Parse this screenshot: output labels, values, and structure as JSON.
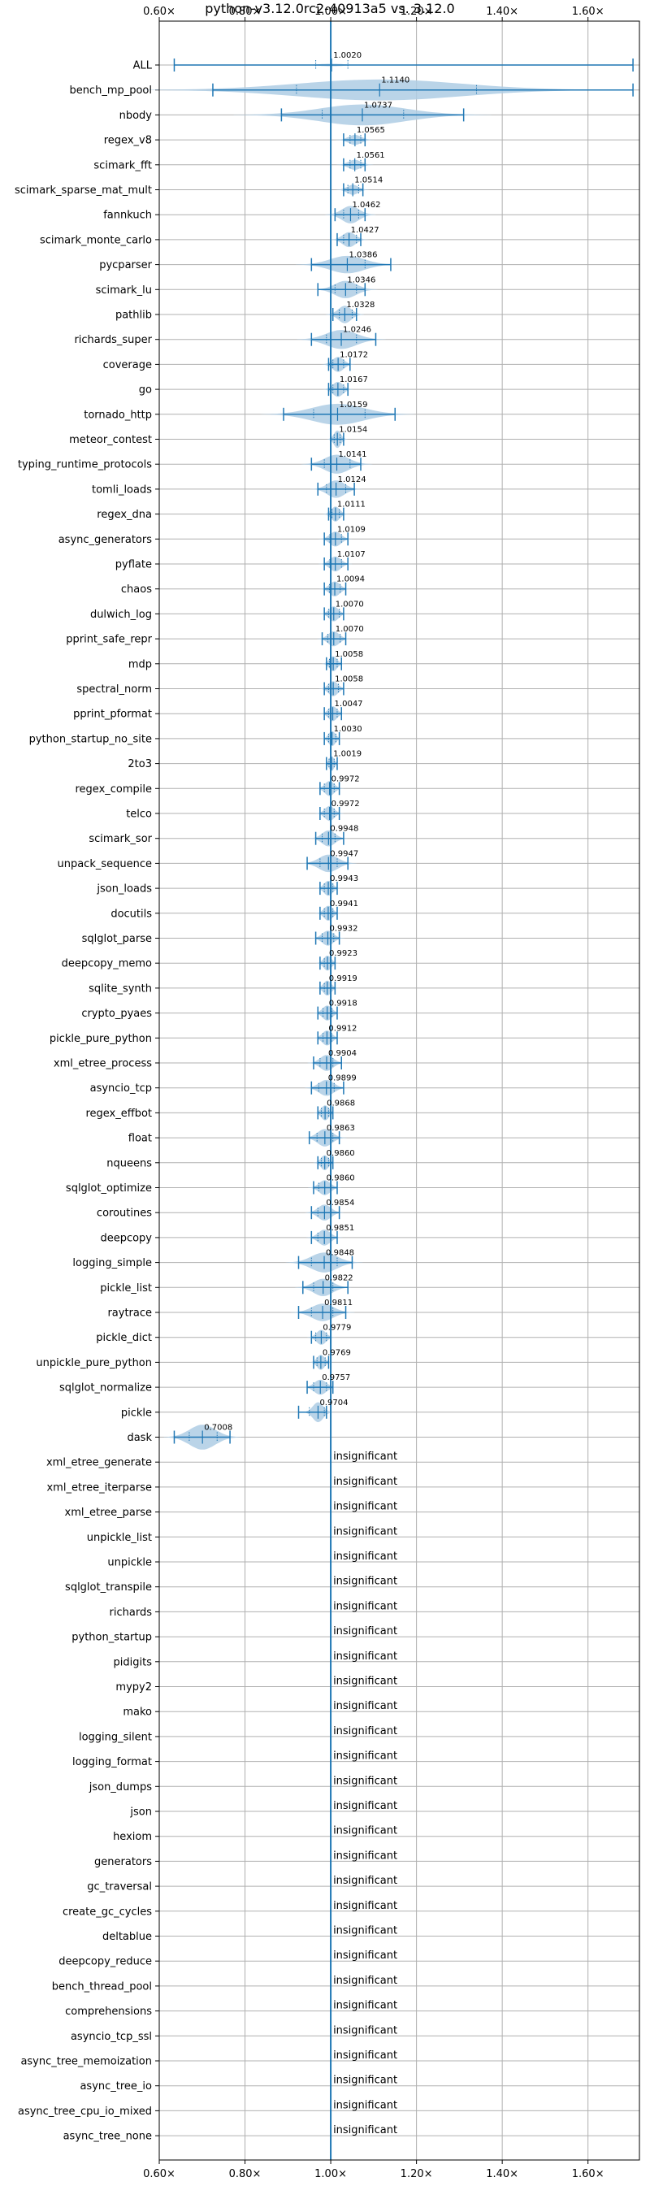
{
  "chart_data": {
    "type": "violin",
    "title": "python-v3.12.0rc2-40913a5 vs. 3.12.0",
    "xlabel": "",
    "ylabel": "",
    "xlim": [
      0.6,
      1.72
    ],
    "xticks": [
      0.6,
      0.8,
      1.0,
      1.2,
      1.4,
      1.6
    ],
    "xtick_labels": [
      "0.60×",
      "0.80×",
      "1.00×",
      "1.20×",
      "1.40×",
      "1.60×"
    ],
    "grid": true,
    "reference_line": 1.0,
    "colors": {
      "violin": "#aecde4",
      "line": "#1f77b4"
    },
    "insignificant_label": "insignificant",
    "benchmarks": [
      {
        "name": "ALL",
        "mean": 1.002,
        "label": "1.0020",
        "min": 0.635,
        "max": 1.705,
        "q1": 0.965,
        "q3": 1.04,
        "width": 0.05,
        "spread": 0.03
      },
      {
        "name": "bench_mp_pool",
        "mean": 1.114,
        "label": "1.1140",
        "min": 0.725,
        "max": 1.705,
        "q1": 0.92,
        "q3": 1.34,
        "width": 0.42,
        "spread": 0.19
      },
      {
        "name": "nbody",
        "mean": 1.0737,
        "label": "1.0737",
        "min": 0.885,
        "max": 1.31,
        "q1": 0.98,
        "q3": 1.17,
        "width": 0.42,
        "spread": 0.1
      },
      {
        "name": "regex_v8",
        "mean": 1.0565,
        "label": "1.0565",
        "min": 1.03,
        "max": 1.08,
        "q1": 1.045,
        "q3": 1.07,
        "width": 0.2,
        "spread": 0.015
      },
      {
        "name": "scimark_fft",
        "mean": 1.0561,
        "label": "1.0561",
        "min": 1.03,
        "max": 1.08,
        "q1": 1.045,
        "q3": 1.07,
        "width": 0.2,
        "spread": 0.015
      },
      {
        "name": "scimark_sparse_mat_mult",
        "mean": 1.0514,
        "label": "1.0514",
        "min": 1.03,
        "max": 1.075,
        "q1": 1.04,
        "q3": 1.065,
        "width": 0.2,
        "spread": 0.013
      },
      {
        "name": "fannkuch",
        "mean": 1.0462,
        "label": "1.0462",
        "min": 1.01,
        "max": 1.08,
        "q1": 1.03,
        "q3": 1.065,
        "width": 0.35,
        "spread": 0.02
      },
      {
        "name": "scimark_monte_carlo",
        "mean": 1.0427,
        "label": "1.0427",
        "min": 1.015,
        "max": 1.07,
        "q1": 1.03,
        "q3": 1.06,
        "width": 0.3,
        "spread": 0.015
      },
      {
        "name": "pycparser",
        "mean": 1.0386,
        "label": "1.0386",
        "min": 0.955,
        "max": 1.14,
        "q1": 1.0,
        "q3": 1.08,
        "width": 0.35,
        "spread": 0.04
      },
      {
        "name": "scimark_lu",
        "mean": 1.0346,
        "label": "1.0346",
        "min": 0.97,
        "max": 1.08,
        "q1": 1.01,
        "q3": 1.06,
        "width": 0.35,
        "spread": 0.025
      },
      {
        "name": "pathlib",
        "mean": 1.0328,
        "label": "1.0328",
        "min": 1.005,
        "max": 1.06,
        "q1": 1.02,
        "q3": 1.05,
        "width": 0.35,
        "spread": 0.015
      },
      {
        "name": "richards_super",
        "mean": 1.0246,
        "label": "1.0246",
        "min": 0.955,
        "max": 1.105,
        "q1": 0.99,
        "q3": 1.06,
        "width": 0.38,
        "spread": 0.035
      },
      {
        "name": "coverage",
        "mean": 1.0172,
        "label": "1.0172",
        "min": 0.995,
        "max": 1.045,
        "q1": 1.005,
        "q3": 1.03,
        "width": 0.3,
        "spread": 0.013
      },
      {
        "name": "go",
        "mean": 1.0167,
        "label": "1.0167",
        "min": 0.995,
        "max": 1.04,
        "q1": 1.005,
        "q3": 1.03,
        "width": 0.3,
        "spread": 0.012
      },
      {
        "name": "tornado_http",
        "mean": 1.0159,
        "label": "1.0159",
        "min": 0.89,
        "max": 1.15,
        "q1": 0.96,
        "q3": 1.08,
        "width": 0.42,
        "spread": 0.06
      },
      {
        "name": "meteor_contest",
        "mean": 1.0154,
        "label": "1.0154",
        "min": 1.0,
        "max": 1.03,
        "q1": 1.008,
        "q3": 1.022,
        "width": 0.35,
        "spread": 0.008
      },
      {
        "name": "typing_runtime_protocols",
        "mean": 1.0141,
        "label": "1.0141",
        "min": 0.955,
        "max": 1.07,
        "q1": 0.985,
        "q3": 1.045,
        "width": 0.38,
        "spread": 0.028
      },
      {
        "name": "tomli_loads",
        "mean": 1.0124,
        "label": "1.0124",
        "min": 0.97,
        "max": 1.055,
        "q1": 0.99,
        "q3": 1.035,
        "width": 0.35,
        "spread": 0.02
      },
      {
        "name": "regex_dna",
        "mean": 1.0111,
        "label": "1.0111",
        "min": 0.995,
        "max": 1.03,
        "q1": 1.003,
        "q3": 1.02,
        "width": 0.3,
        "spread": 0.01
      },
      {
        "name": "async_generators",
        "mean": 1.0109,
        "label": "1.0109",
        "min": 0.985,
        "max": 1.04,
        "q1": 0.998,
        "q3": 1.025,
        "width": 0.3,
        "spread": 0.013
      },
      {
        "name": "pyflate",
        "mean": 1.0107,
        "label": "1.0107",
        "min": 0.985,
        "max": 1.04,
        "q1": 0.998,
        "q3": 1.025,
        "width": 0.3,
        "spread": 0.013
      },
      {
        "name": "chaos",
        "mean": 1.0094,
        "label": "1.0094",
        "min": 0.985,
        "max": 1.035,
        "q1": 0.997,
        "q3": 1.022,
        "width": 0.3,
        "spread": 0.012
      },
      {
        "name": "dulwich_log",
        "mean": 1.007,
        "label": "1.0070",
        "min": 0.985,
        "max": 1.03,
        "q1": 0.995,
        "q3": 1.02,
        "width": 0.3,
        "spread": 0.011
      },
      {
        "name": "pprint_safe_repr",
        "mean": 1.007,
        "label": "1.0070",
        "min": 0.98,
        "max": 1.035,
        "q1": 0.993,
        "q3": 1.022,
        "width": 0.3,
        "spread": 0.013
      },
      {
        "name": "mdp",
        "mean": 1.0058,
        "label": "1.0058",
        "min": 0.99,
        "max": 1.025,
        "q1": 0.997,
        "q3": 1.015,
        "width": 0.3,
        "spread": 0.009
      },
      {
        "name": "spectral_norm",
        "mean": 1.0058,
        "label": "1.0058",
        "min": 0.985,
        "max": 1.03,
        "q1": 0.995,
        "q3": 1.018,
        "width": 0.3,
        "spread": 0.011
      },
      {
        "name": "pprint_pformat",
        "mean": 1.0047,
        "label": "1.0047",
        "min": 0.985,
        "max": 1.025,
        "q1": 0.995,
        "q3": 1.015,
        "width": 0.3,
        "spread": 0.01
      },
      {
        "name": "python_startup_no_site",
        "mean": 1.003,
        "label": "1.0030",
        "min": 0.985,
        "max": 1.02,
        "q1": 0.995,
        "q3": 1.012,
        "width": 0.3,
        "spread": 0.008
      },
      {
        "name": "2to3",
        "mean": 1.0019,
        "label": "1.0019",
        "min": 0.99,
        "max": 1.015,
        "q1": 0.996,
        "q3": 1.008,
        "width": 0.3,
        "spread": 0.006
      },
      {
        "name": "regex_compile",
        "mean": 0.9972,
        "label": "0.9972",
        "min": 0.975,
        "max": 1.02,
        "q1": 0.985,
        "q3": 1.008,
        "width": 0.3,
        "spread": 0.011
      },
      {
        "name": "telco",
        "mean": 0.9972,
        "label": "0.9972",
        "min": 0.975,
        "max": 1.02,
        "q1": 0.985,
        "q3": 1.008,
        "width": 0.3,
        "spread": 0.011
      },
      {
        "name": "scimark_sor",
        "mean": 0.9948,
        "label": "0.9948",
        "min": 0.965,
        "max": 1.03,
        "q1": 0.98,
        "q3": 1.01,
        "width": 0.32,
        "spread": 0.015
      },
      {
        "name": "unpack_sequence",
        "mean": 0.9947,
        "label": "0.9947",
        "min": 0.945,
        "max": 1.04,
        "q1": 0.975,
        "q3": 1.015,
        "width": 0.35,
        "spread": 0.022
      },
      {
        "name": "json_loads",
        "mean": 0.9943,
        "label": "0.9943",
        "min": 0.975,
        "max": 1.015,
        "q1": 0.985,
        "q3": 1.005,
        "width": 0.3,
        "spread": 0.01
      },
      {
        "name": "docutils",
        "mean": 0.9941,
        "label": "0.9941",
        "min": 0.975,
        "max": 1.015,
        "q1": 0.985,
        "q3": 1.005,
        "width": 0.3,
        "spread": 0.01
      },
      {
        "name": "sqlglot_parse",
        "mean": 0.9932,
        "label": "0.9932",
        "min": 0.965,
        "max": 1.02,
        "q1": 0.98,
        "q3": 1.007,
        "width": 0.3,
        "spread": 0.013
      },
      {
        "name": "deepcopy_memo",
        "mean": 0.9923,
        "label": "0.9923",
        "min": 0.975,
        "max": 1.01,
        "q1": 0.985,
        "q3": 1.0,
        "width": 0.3,
        "spread": 0.009
      },
      {
        "name": "sqlite_synth",
        "mean": 0.9919,
        "label": "0.9919",
        "min": 0.975,
        "max": 1.01,
        "q1": 0.985,
        "q3": 1.0,
        "width": 0.3,
        "spread": 0.009
      },
      {
        "name": "crypto_pyaes",
        "mean": 0.9918,
        "label": "0.9918",
        "min": 0.97,
        "max": 1.015,
        "q1": 0.982,
        "q3": 1.003,
        "width": 0.3,
        "spread": 0.011
      },
      {
        "name": "pickle_pure_python",
        "mean": 0.9912,
        "label": "0.9912",
        "min": 0.97,
        "max": 1.015,
        "q1": 0.982,
        "q3": 1.002,
        "width": 0.3,
        "spread": 0.011
      },
      {
        "name": "xml_etree_process",
        "mean": 0.9904,
        "label": "0.9904",
        "min": 0.96,
        "max": 1.025,
        "q1": 0.975,
        "q3": 1.005,
        "width": 0.32,
        "spread": 0.015
      },
      {
        "name": "asyncio_tcp",
        "mean": 0.9899,
        "label": "0.9899",
        "min": 0.955,
        "max": 1.03,
        "q1": 0.972,
        "q3": 1.008,
        "width": 0.32,
        "spread": 0.017
      },
      {
        "name": "regex_effbot",
        "mean": 0.9868,
        "label": "0.9868",
        "min": 0.97,
        "max": 1.005,
        "q1": 0.978,
        "q3": 0.995,
        "width": 0.3,
        "spread": 0.009
      },
      {
        "name": "float",
        "mean": 0.9863,
        "label": "0.9863",
        "min": 0.95,
        "max": 1.02,
        "q1": 0.968,
        "q3": 1.005,
        "width": 0.35,
        "spread": 0.017
      },
      {
        "name": "nqueens",
        "mean": 0.986,
        "label": "0.9860",
        "min": 0.97,
        "max": 1.005,
        "q1": 0.978,
        "q3": 0.995,
        "width": 0.3,
        "spread": 0.009
      },
      {
        "name": "sqlglot_optimize",
        "mean": 0.986,
        "label": "0.9860",
        "min": 0.96,
        "max": 1.015,
        "q1": 0.972,
        "q3": 1.0,
        "width": 0.3,
        "spread": 0.013
      },
      {
        "name": "coroutines",
        "mean": 0.9854,
        "label": "0.9854",
        "min": 0.955,
        "max": 1.02,
        "q1": 0.97,
        "q3": 1.0,
        "width": 0.32,
        "spread": 0.015
      },
      {
        "name": "deepcopy",
        "mean": 0.9851,
        "label": "0.9851",
        "min": 0.955,
        "max": 1.015,
        "q1": 0.97,
        "q3": 1.0,
        "width": 0.32,
        "spread": 0.014
      },
      {
        "name": "logging_simple",
        "mean": 0.9848,
        "label": "0.9848",
        "min": 0.925,
        "max": 1.05,
        "q1": 0.955,
        "q3": 1.015,
        "width": 0.4,
        "spread": 0.03
      },
      {
        "name": "pickle_list",
        "mean": 0.9822,
        "label": "0.9822",
        "min": 0.935,
        "max": 1.04,
        "q1": 0.96,
        "q3": 1.005,
        "width": 0.35,
        "spread": 0.022
      },
      {
        "name": "raytrace",
        "mean": 0.9811,
        "label": "0.9811",
        "min": 0.925,
        "max": 1.035,
        "q1": 0.955,
        "q3": 1.005,
        "width": 0.35,
        "spread": 0.025
      },
      {
        "name": "pickle_dict",
        "mean": 0.9779,
        "label": "0.9779",
        "min": 0.955,
        "max": 1.0,
        "q1": 0.965,
        "q3": 0.99,
        "width": 0.3,
        "spread": 0.011
      },
      {
        "name": "unpickle_pure_python",
        "mean": 0.9769,
        "label": "0.9769",
        "min": 0.96,
        "max": 0.995,
        "q1": 0.968,
        "q3": 0.987,
        "width": 0.3,
        "spread": 0.009
      },
      {
        "name": "sqlglot_normalize",
        "mean": 0.9757,
        "label": "0.9757",
        "min": 0.945,
        "max": 1.005,
        "q1": 0.96,
        "q3": 0.99,
        "width": 0.3,
        "spread": 0.014
      },
      {
        "name": "pickle",
        "mean": 0.9704,
        "label": "0.9704",
        "min": 0.925,
        "max": 0.99,
        "q1": 0.95,
        "q3": 0.985,
        "width": 0.4,
        "spread": 0.012
      },
      {
        "name": "dask",
        "mean": 0.7008,
        "label": "0.7008",
        "min": 0.635,
        "max": 0.765,
        "q1": 0.67,
        "q3": 0.735,
        "width": 0.5,
        "spread": 0.03
      }
    ],
    "insignificant": [
      "xml_etree_generate",
      "xml_etree_iterparse",
      "xml_etree_parse",
      "unpickle_list",
      "unpickle",
      "sqlglot_transpile",
      "richards",
      "python_startup",
      "pidigits",
      "mypy2",
      "mako",
      "logging_silent",
      "logging_format",
      "json_dumps",
      "json",
      "hexiom",
      "generators",
      "gc_traversal",
      "create_gc_cycles",
      "deltablue",
      "deepcopy_reduce",
      "bench_thread_pool",
      "comprehensions",
      "asyncio_tcp_ssl",
      "async_tree_memoization",
      "async_tree_io",
      "async_tree_cpu_io_mixed",
      "async_tree_none"
    ]
  }
}
